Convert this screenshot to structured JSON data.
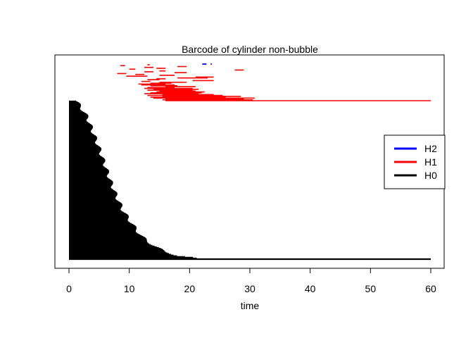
{
  "chart_data": {
    "type": "barcode",
    "title": "Barcode of cylinder non-bubble",
    "xlabel": "time",
    "ylabel": "",
    "xlim": [
      0,
      60
    ],
    "x_ticks": [
      0,
      10,
      20,
      30,
      40,
      50,
      60
    ],
    "x_tick_labels": [
      "0",
      "10",
      "20",
      "30",
      "40",
      "50",
      "60"
    ],
    "legend": {
      "placement": "right",
      "entries": [
        {
          "label": "H2",
          "color": "#0000ff"
        },
        {
          "label": "H1",
          "color": "#ff0000"
        },
        {
          "label": "H0",
          "color": "#000000"
        }
      ]
    },
    "series": [
      {
        "dimension": "H0",
        "color": "#000000",
        "bar_count": 211,
        "longest_bar": [
          0,
          60
        ],
        "death_time_profile": [
          [
            0,
            1.2
          ],
          [
            0.04,
            2
          ],
          [
            0.1,
            3
          ],
          [
            0.2,
            4
          ],
          [
            0.3,
            5
          ],
          [
            0.4,
            5.9
          ],
          [
            0.5,
            6.8
          ],
          [
            0.6,
            7.8
          ],
          [
            0.7,
            9
          ],
          [
            0.8,
            10.8
          ],
          [
            0.86,
            12
          ],
          [
            0.92,
            14
          ],
          [
            0.96,
            16
          ],
          [
            0.985,
            18
          ],
          [
            0.995,
            20.5
          ],
          [
            1,
            21
          ]
        ]
      },
      {
        "dimension": "H1",
        "color": "#ff0000",
        "bars": [
          [
            16,
            60
          ],
          [
            15.5,
            30.5
          ],
          [
            16,
            29
          ],
          [
            14,
            30.8
          ],
          [
            13.5,
            26
          ],
          [
            15.5,
            28.5
          ],
          [
            13,
            25.5
          ],
          [
            15.5,
            24
          ],
          [
            12.5,
            21.5
          ],
          [
            13.5,
            22
          ],
          [
            14.5,
            22.5
          ],
          [
            15,
            21
          ],
          [
            13,
            20.5
          ],
          [
            14,
            21.5
          ],
          [
            12.5,
            20.5
          ],
          [
            13,
            17.5
          ],
          [
            16,
            21
          ],
          [
            13.5,
            18
          ],
          [
            12,
            17.5
          ],
          [
            11.5,
            16
          ],
          [
            13.5,
            17
          ],
          [
            15,
            19.5
          ],
          [
            12,
            13.5
          ],
          [
            20.5,
            24
          ],
          [
            13,
            15
          ],
          [
            14.5,
            16
          ],
          [
            18,
            23
          ],
          [
            21,
            24
          ],
          [
            9.5,
            13
          ],
          [
            15,
            17.5
          ],
          [
            11,
            12.5
          ],
          [
            8,
            9.5
          ],
          [
            17.5,
            19.5
          ],
          [
            12.5,
            14
          ],
          [
            15,
            16
          ],
          [
            27.5,
            29
          ],
          [
            10,
            11
          ],
          [
            14.5,
            16
          ],
          [
            12.5,
            14
          ],
          [
            18,
            19.5
          ],
          [
            8.5,
            9.3
          ],
          [
            13,
            13.4
          ]
        ]
      },
      {
        "dimension": "H2",
        "color": "#0000ff",
        "bars": [
          [
            22.1,
            22.8
          ],
          [
            23.5,
            23.7
          ]
        ]
      }
    ]
  }
}
